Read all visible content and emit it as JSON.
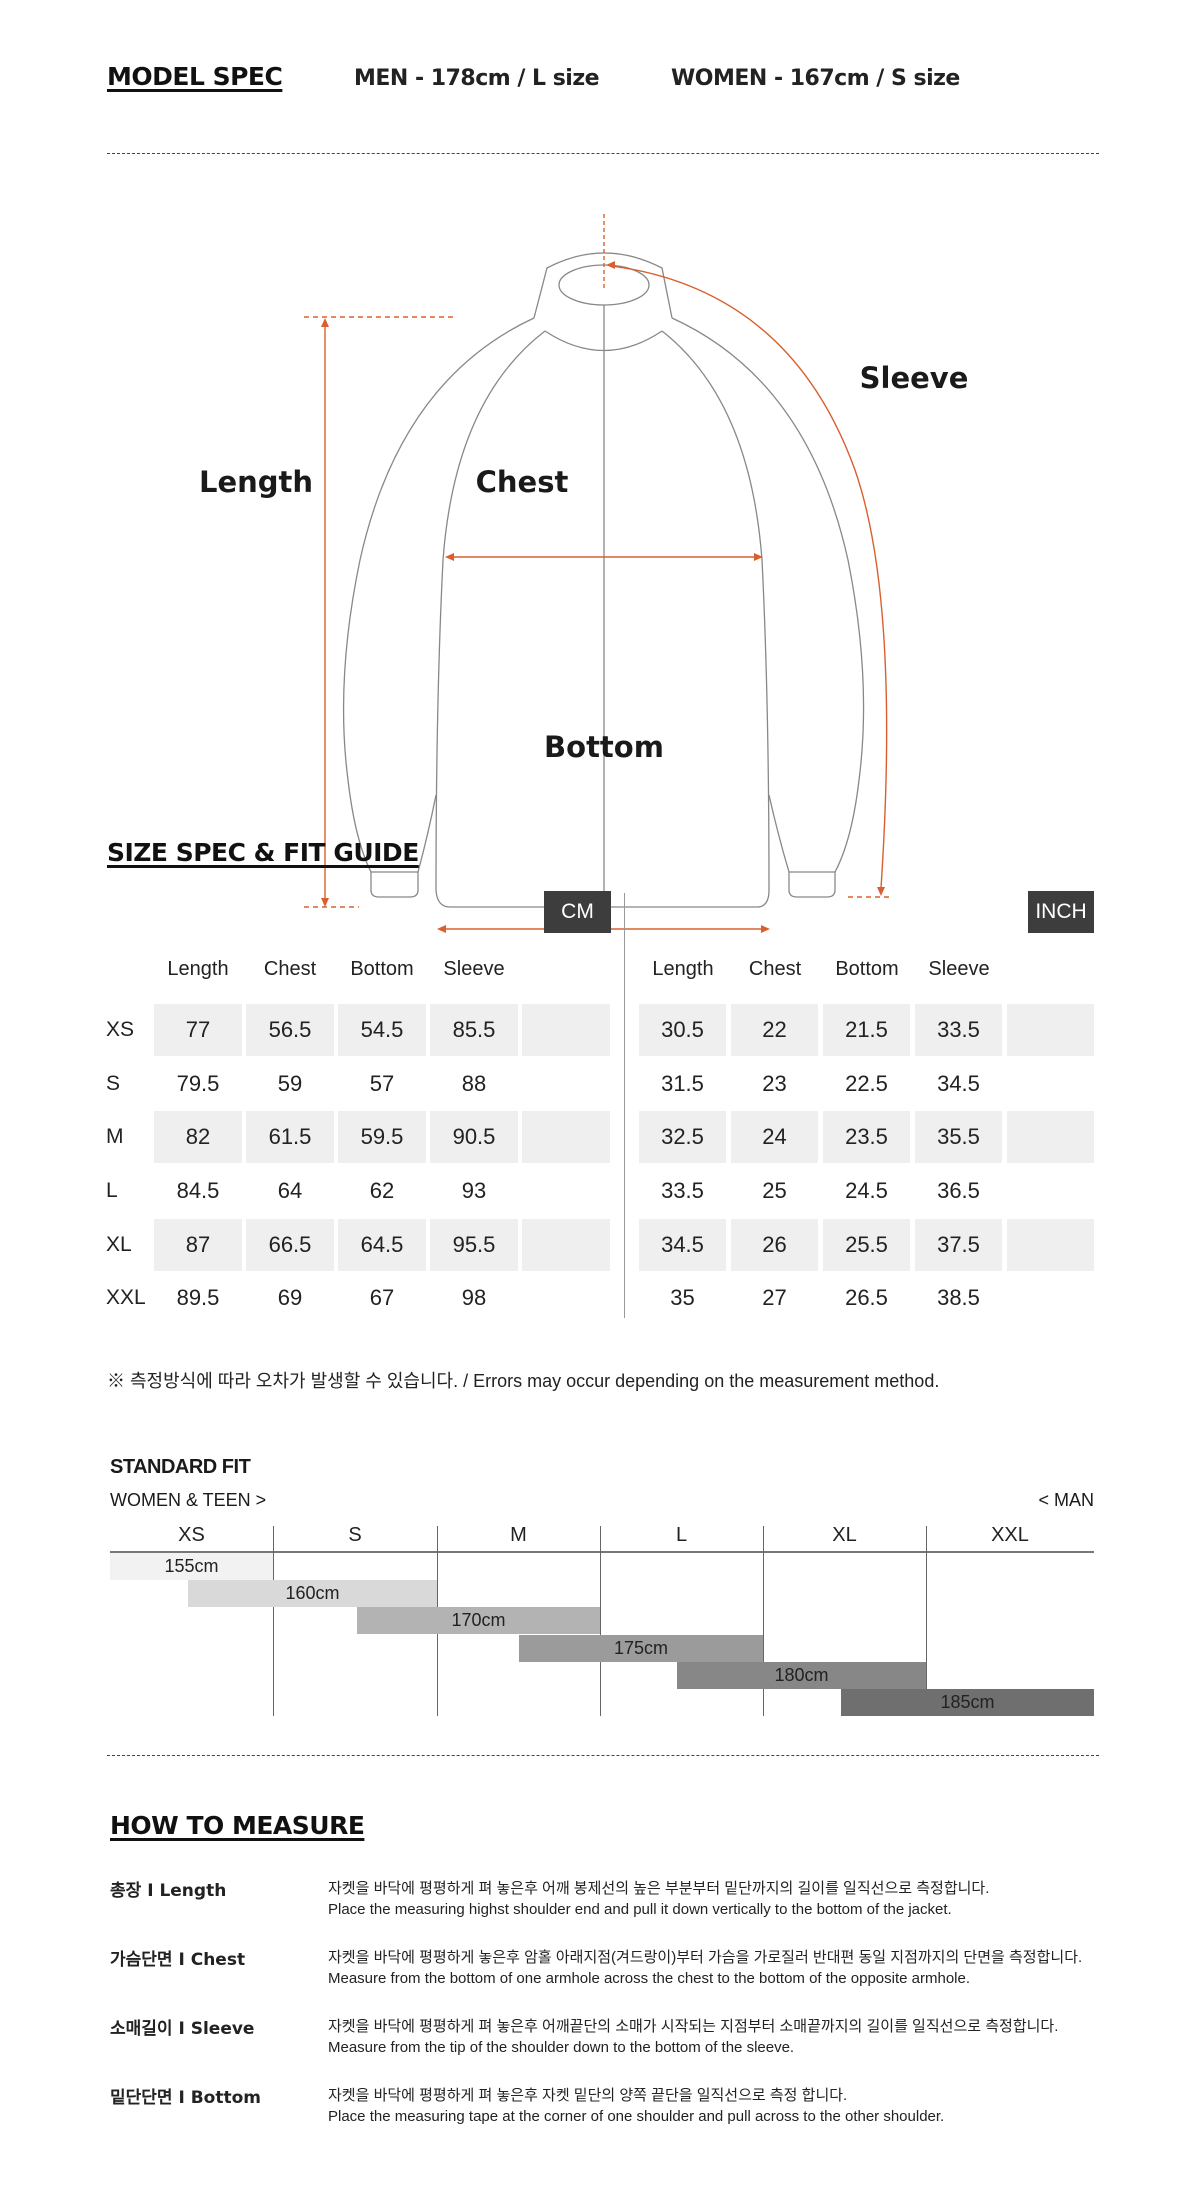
{
  "model_spec": {
    "title": "MODEL SPEC",
    "men": "MEN - 178cm / L size",
    "women": "WOMEN - 167cm / S size"
  },
  "diagram": {
    "labels": {
      "length": "Length",
      "chest": "Chest",
      "sleeve": "Sleeve",
      "bottom": "Bottom"
    },
    "colors": {
      "outline": "#888888",
      "measure": "#d9602e"
    }
  },
  "size_spec": {
    "title": "SIZE SPEC  &  FIT GUIDE",
    "cm_badge": "CM",
    "inch_badge": "INCH",
    "headers": [
      "Length",
      "Chest",
      "Bottom",
      "Sleeve"
    ],
    "sizes": [
      "XS",
      "S",
      "M",
      "L",
      "XL",
      "XXL"
    ],
    "cm": [
      [
        "77",
        "56.5",
        "54.5",
        "85.5"
      ],
      [
        "79.5",
        "59",
        "57",
        "88"
      ],
      [
        "82",
        "61.5",
        "59.5",
        "90.5"
      ],
      [
        "84.5",
        "64",
        "62",
        "93"
      ],
      [
        "87",
        "66.5",
        "64.5",
        "95.5"
      ],
      [
        "89.5",
        "69",
        "67",
        "98"
      ]
    ],
    "inch": [
      [
        "30.5",
        "22",
        "21.5",
        "33.5"
      ],
      [
        "31.5",
        "23",
        "22.5",
        "34.5"
      ],
      [
        "32.5",
        "24",
        "23.5",
        "35.5"
      ],
      [
        "33.5",
        "25",
        "24.5",
        "36.5"
      ],
      [
        "34.5",
        "26",
        "25.5",
        "37.5"
      ],
      [
        "35",
        "27",
        "26.5",
        "38.5"
      ]
    ],
    "note": "※ 측정방식에 따라 오차가 발생할 수 있습니다. / Errors may occur depending on the measurement method."
  },
  "standard_fit": {
    "title": "STANDARD FIT",
    "left_label": "WOMEN & TEEN >",
    "right_label": "< MAN",
    "sizes": [
      "XS",
      "S",
      "M",
      "L",
      "XL",
      "XXL"
    ],
    "heights": [
      {
        "label": "155cm",
        "color": "#f2f2f2"
      },
      {
        "label": "160cm",
        "color": "#d9d9d9"
      },
      {
        "label": "170cm",
        "color": "#b3b3b3"
      },
      {
        "label": "175cm",
        "color": "#9b9b9b"
      },
      {
        "label": "180cm",
        "color": "#878787"
      },
      {
        "label": "185cm",
        "color": "#6f6f6f"
      }
    ]
  },
  "how_to_measure": {
    "title": "HOW TO MEASURE",
    "items": [
      {
        "label": "총장 I Length",
        "ko": "자켓을 바닥에 평평하게 펴 놓은후 어깨 봉제선의 높은 부분부터 밑단까지의 길이를 일직선으로 측정합니다.",
        "en": "Place the measuring highst shoulder end and pull it down vertically to the bottom of the jacket."
      },
      {
        "label": "가슴단면 I Chest",
        "ko": "자켓을 바닥에 평평하게 놓은후 암홀 아래지점(겨드랑이)부터 가슴을 가로질러 반대편 동일 지점까지의 단면을 측정합니다.",
        "en": "Measure from the bottom of one armhole across the chest to the bottom of the opposite armhole."
      },
      {
        "label": "소매길이 I Sleeve",
        "ko": "자켓을 바닥에 평평하게 펴 놓은후 어깨끝단의 소매가 시작되는 지점부터 소매끝까지의 길이를 일직선으로 측정합니다.",
        "en": "Measure from the tip of the shoulder down to the bottom of the sleeve."
      },
      {
        "label": "밑단단면 I Bottom",
        "ko": "자켓을 바닥에 평평하게 펴 놓은후 자켓 밑단의 양쪽 끝단을 일직선으로 측정 합니다.",
        "en": "Place the measuring tape at the corner of one shoulder and pull across to the other shoulder."
      }
    ]
  }
}
